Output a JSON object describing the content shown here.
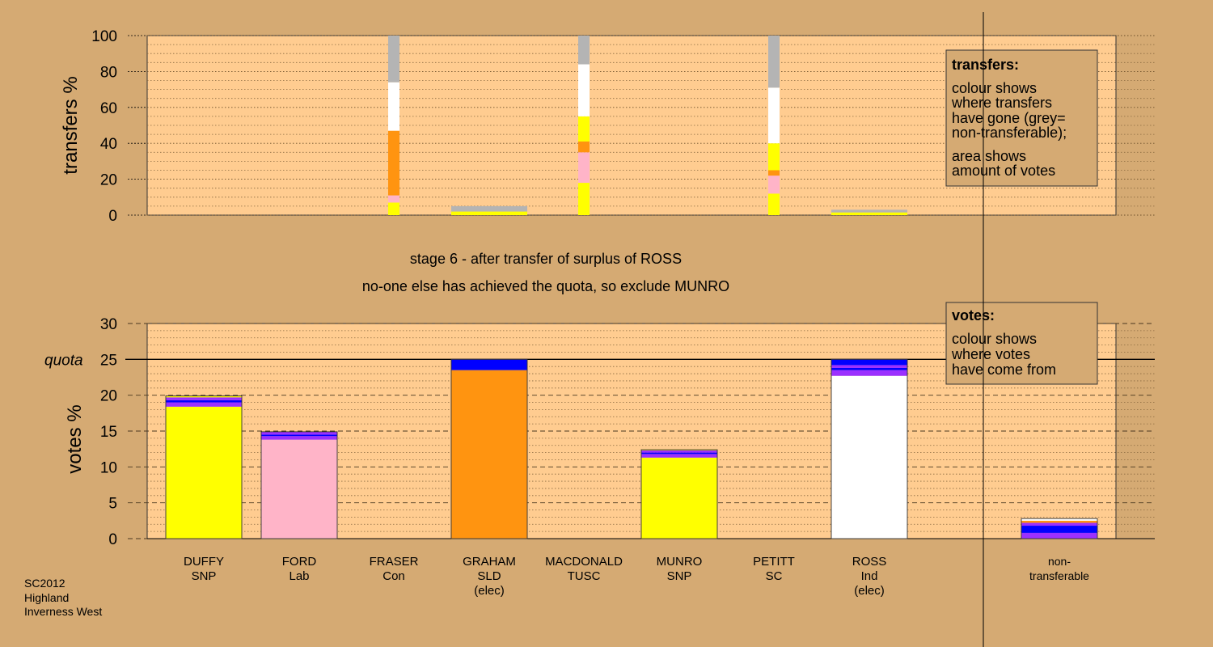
{
  "colors": {
    "page_bg": "#d5aa73",
    "plot_bg": "#ffcc90",
    "grey": "#b4b4b4",
    "white": "#ffffff",
    "orange": "#ff9410",
    "yellow": "#ffff00",
    "pink": "#ffb4c8",
    "purple": "#9b30ff",
    "blue": "#0000ff",
    "legend_bg": "#d5aa73"
  },
  "footer": {
    "line1": "SC2012",
    "line2": "Highland",
    "line3": "Inverness West"
  },
  "stage": {
    "line1": "stage 6 - after transfer of surplus of ROSS",
    "line2": "no-one else has achieved the quota, so exclude MUNRO"
  },
  "transfers_legend": {
    "title": "transfers:",
    "lines": [
      "colour shows",
      "where transfers",
      "have gone (grey=",
      "non-transferable);",
      "area shows",
      "amount of votes"
    ]
  },
  "votes_legend": {
    "title": "votes:",
    "lines": [
      "colour shows",
      "where votes",
      "have come from"
    ]
  },
  "chart_data": [
    {
      "type": "bar",
      "title": "",
      "ylabel": "transfers %",
      "ylim": [
        0,
        100
      ],
      "yticks": [
        0,
        20,
        40,
        60,
        80,
        100
      ],
      "categories": [
        "DUFFY SNP",
        "FORD Lab",
        "FRASER Con",
        "GRAHAM SLD (elec)",
        "MACDONALD TUSC",
        "MUNRO SNP",
        "PETITT SC",
        "ROSS Ind (elec)",
        "non-transferable"
      ],
      "note": "stacked transfer columns: segments listed bottom to top as [colour, from %, to %]; thin = narrow column",
      "columns": [
        {
          "category": 2,
          "thin": true,
          "segments": [
            [
              "yellow",
              0,
              7
            ],
            [
              "pink",
              7,
              11
            ],
            [
              "orange",
              11,
              47
            ],
            [
              "white",
              47,
              74
            ],
            [
              "grey",
              74,
              100
            ]
          ]
        },
        {
          "category": 3,
          "thin": false,
          "segments": [
            [
              "yellow",
              0,
              2
            ],
            [
              "grey",
              2,
              5
            ]
          ]
        },
        {
          "category": 4,
          "thin": true,
          "segments": [
            [
              "yellow",
              0,
              18
            ],
            [
              "pink",
              18,
              35
            ],
            [
              "orange",
              35,
              41
            ],
            [
              "yellow",
              41,
              55
            ],
            [
              "white",
              55,
              84
            ],
            [
              "grey",
              84,
              100
            ]
          ]
        },
        {
          "category": 6,
          "thin": true,
          "segments": [
            [
              "yellow",
              0,
              12
            ],
            [
              "pink",
              12,
              22
            ],
            [
              "orange",
              22,
              25
            ],
            [
              "yellow",
              25,
              40
            ],
            [
              "white",
              40,
              71
            ],
            [
              "grey",
              71,
              100
            ]
          ]
        },
        {
          "category": 7,
          "thin": false,
          "segments": [
            [
              "yellow",
              0,
              1.5
            ],
            [
              "grey",
              1.5,
              3
            ]
          ]
        }
      ]
    },
    {
      "type": "bar",
      "title": "",
      "ylabel": "votes %",
      "ylim": [
        0,
        30
      ],
      "yticks": [
        0,
        5,
        10,
        15,
        20,
        25,
        30
      ],
      "quota": {
        "label": "quota",
        "value": 25
      },
      "categories": [
        "DUFFY\nSNP",
        "FORD\nLab",
        "FRASER\nCon",
        "GRAHAM\nSLD\n(elec)",
        "MACDONALD\nTUSC",
        "MUNRO\nSNP",
        "PETITT\nSC",
        "ROSS\nInd\n(elec)",
        "non-\ntransferable"
      ],
      "category_lines": [
        [
          "DUFFY",
          "SNP"
        ],
        [
          "FORD",
          "Lab"
        ],
        [
          "FRASER",
          "Con"
        ],
        [
          "GRAHAM",
          "SLD",
          "(elec)"
        ],
        [
          "MACDONALD",
          "TUSC"
        ],
        [
          "MUNRO",
          "SNP"
        ],
        [
          "PETITT",
          "SC"
        ],
        [
          "ROSS",
          "Ind",
          "(elec)"
        ],
        [
          "non-",
          "transferable"
        ]
      ],
      "note": "stacked vote columns: segments listed bottom to top as [colour, vote %]",
      "stacks": [
        [
          [
            "yellow",
            18.4
          ],
          [
            "purple",
            0.6
          ],
          [
            "blue",
            0.3
          ],
          [
            "purple",
            0.4
          ],
          [
            "yellow",
            0.2
          ]
        ],
        [
          [
            "pink",
            13.8
          ],
          [
            "purple",
            0.5
          ],
          [
            "blue",
            0.2
          ],
          [
            "purple",
            0.4
          ]
        ],
        [],
        [
          [
            "orange",
            23.5
          ],
          [
            "blue",
            1.5
          ]
        ],
        [],
        [
          [
            "yellow",
            11.3
          ],
          [
            "purple",
            0.5
          ],
          [
            "blue",
            0.2
          ],
          [
            "purple",
            0.3
          ],
          [
            "yellow",
            0.1
          ]
        ],
        [],
        [
          [
            "white",
            22.7
          ],
          [
            "purple",
            0.8
          ],
          [
            "blue",
            0.3
          ],
          [
            "purple",
            0.4
          ],
          [
            "blue",
            0.8
          ]
        ],
        [
          [
            "purple",
            0.8
          ],
          [
            "blue",
            1.0
          ],
          [
            "purple",
            0.4
          ],
          [
            "orange",
            0.3
          ],
          [
            "white",
            0.3
          ]
        ]
      ]
    }
  ]
}
